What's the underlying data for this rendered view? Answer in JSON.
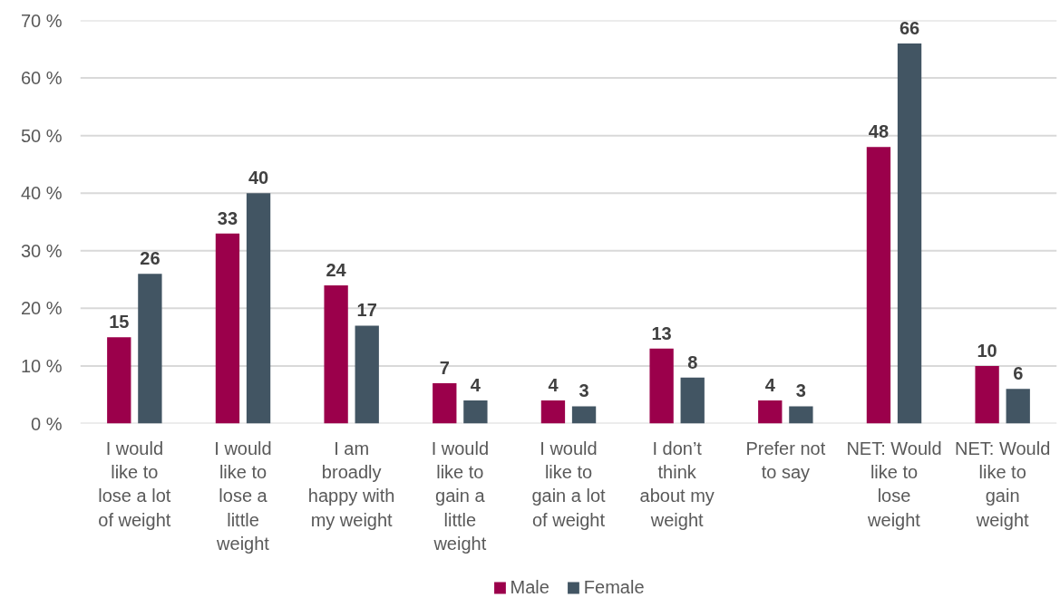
{
  "chart_data": {
    "type": "bar",
    "categories": [
      "I would like to lose a lot of weight",
      "I would like to lose a little weight",
      "I am broadly happy with my weight",
      "I would like to gain a little weight",
      "I would like to gain a lot of weight",
      "I don’t think about my weight",
      "Prefer not to say",
      "NET: Would like to lose weight",
      "NET: Would like to gain weight"
    ],
    "series": [
      {
        "name": "Male",
        "color": "#9b004b",
        "values": [
          15,
          33,
          24,
          7,
          4,
          13,
          4,
          48,
          10
        ]
      },
      {
        "name": "Female",
        "color": "#425563",
        "values": [
          26,
          40,
          17,
          4,
          3,
          8,
          3,
          66,
          6
        ]
      }
    ],
    "ylim": [
      0,
      70
    ],
    "yticks": [
      {
        "value": 0,
        "label": "0 %"
      },
      {
        "value": 10,
        "label": "10 %"
      },
      {
        "value": 20,
        "label": "20 %"
      },
      {
        "value": 30,
        "label": "30 %"
      },
      {
        "value": 40,
        "label": "40 %"
      },
      {
        "value": 50,
        "label": "50 %"
      },
      {
        "value": 60,
        "label": "60 %"
      },
      {
        "value": 70,
        "label": "70 %"
      }
    ],
    "grid": "y",
    "legend": "bottom",
    "data_labels": true
  }
}
